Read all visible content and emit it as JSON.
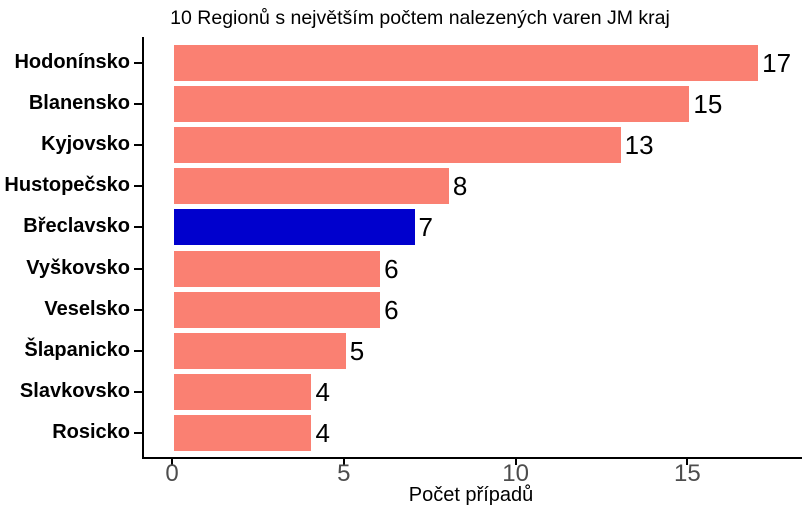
{
  "chart_data": {
    "type": "bar",
    "orientation": "horizontal",
    "title": "10 Regionů s největším počtem nalezených varen JM kraj",
    "xlabel": "Počet případů",
    "ylabel": "",
    "categories": [
      "Hodonínsko",
      "Blanensko",
      "Kyjovsko",
      "Hustopečsko",
      "Břeclavsko",
      "Vyškovsko",
      "Veselsko",
      "Šlapanicko",
      "Slavkovsko",
      "Rosicko"
    ],
    "values": [
      17,
      15,
      13,
      8,
      7,
      6,
      6,
      5,
      4,
      4
    ],
    "value_labels": [
      "17",
      "15",
      "13",
      "8",
      "7",
      "6",
      "6",
      "5",
      "4",
      "4"
    ],
    "highlighted_category": "Břeclavsko",
    "bar_colors": [
      "#FA8072",
      "#FA8072",
      "#FA8072",
      "#FA8072",
      "#0000CD",
      "#FA8072",
      "#FA8072",
      "#FA8072",
      "#FA8072",
      "#FA8072"
    ],
    "x_ticks": [
      0,
      5,
      10,
      15
    ],
    "xlim": [
      0,
      18.3
    ],
    "grid": false,
    "legend": false,
    "colors": {
      "bar_default": "#FA8072",
      "bar_highlight": "#0000CD",
      "axis_line": "#000000",
      "axis_tick_text": "#4d4d4d",
      "text": "#000000",
      "background": "#ffffff"
    }
  }
}
